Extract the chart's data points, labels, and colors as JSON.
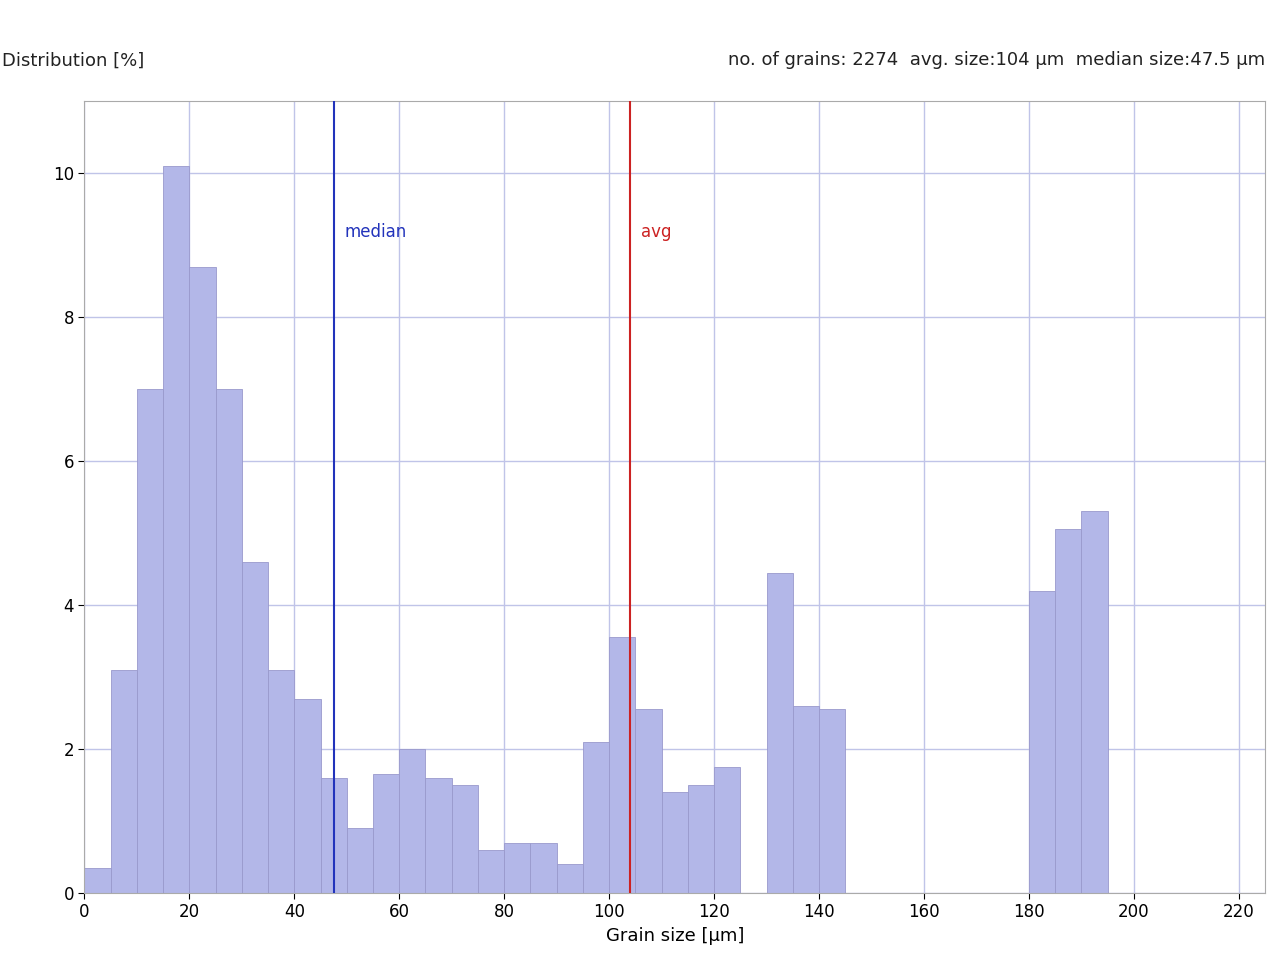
{
  "title_left": "Distribution [%]",
  "title_right": "no. of grains: 2274  avg. size:104 μm  median size:47.5 μm",
  "xlabel": "Grain size [μm]",
  "median_value": 47.5,
  "avg_value": 104,
  "median_label": "median",
  "avg_label": "avg",
  "bar_color": "#b3b7e8",
  "bar_edgecolor": "#9999cc",
  "median_color": "#2233bb",
  "avg_color": "#cc2222",
  "xlim": [
    0,
    225
  ],
  "ylim": [
    0,
    11
  ],
  "yticks": [
    0,
    2,
    4,
    6,
    8,
    10
  ],
  "xticks": [
    0,
    20,
    40,
    60,
    80,
    100,
    120,
    140,
    160,
    180,
    200,
    220
  ],
  "grid_color": "#c0c4e8",
  "bin_width": 5,
  "bin_left_edges": [
    0,
    5,
    10,
    15,
    20,
    25,
    30,
    35,
    40,
    45,
    50,
    55,
    60,
    65,
    70,
    75,
    80,
    85,
    90,
    95,
    100,
    105,
    110,
    115,
    120,
    125,
    130,
    135,
    140,
    145,
    150,
    155,
    160,
    165,
    170,
    175,
    180,
    185,
    190,
    195,
    200,
    205,
    210,
    215
  ],
  "bin_heights": [
    0.35,
    3.1,
    7.0,
    10.1,
    8.7,
    7.0,
    4.6,
    3.1,
    2.7,
    1.6,
    0.9,
    1.65,
    2.0,
    1.6,
    1.5,
    0.6,
    0.7,
    0.7,
    0.4,
    2.1,
    3.55,
    2.55,
    1.4,
    1.5,
    1.75,
    0.0,
    4.45,
    2.6,
    2.55,
    0.0,
    0.0,
    0.0,
    0.0,
    0.0,
    0.0,
    0.0,
    4.2,
    5.05,
    5.3,
    0.0,
    0.0,
    0.0,
    0.0,
    0.0
  ],
  "background_color": "#ffffff",
  "fontsize_title": 13,
  "fontsize_label": 13,
  "fontsize_tick": 12
}
